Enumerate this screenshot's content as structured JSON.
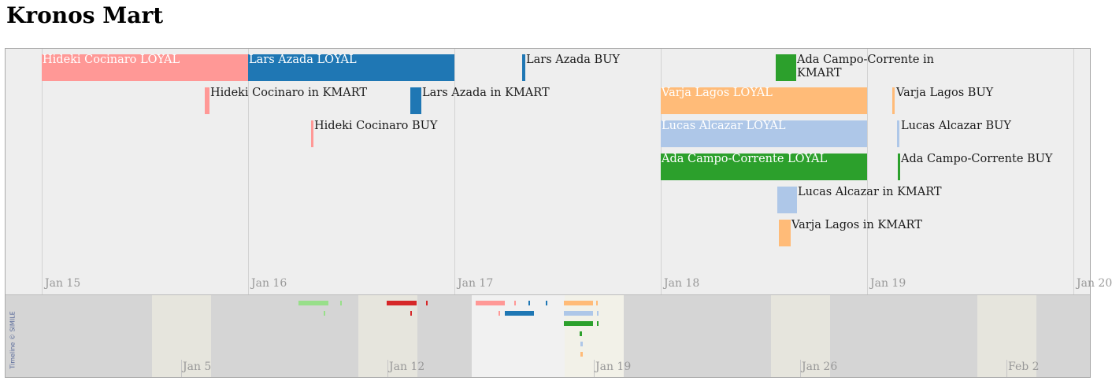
{
  "page": {
    "title": "Kronos Mart"
  },
  "timeline": {
    "upper_band": {
      "date_labels": [
        "Jan 15",
        "Jan 16",
        "Jan 17",
        "Jan 18",
        "Jan 19",
        "Jan 20"
      ],
      "events": [
        {
          "text": "Hideki Cocinaro LOYAL",
          "color": "#ff9896",
          "kind": "duration",
          "label_inside": true
        },
        {
          "text": "Lars Azada LOYAL",
          "color": "#1f77b4",
          "kind": "duration",
          "label_inside": true
        },
        {
          "text": "Lars Azada BUY",
          "color": "#1f77b4",
          "kind": "instant",
          "label_inside": false
        },
        {
          "text": "Ada Campo-Corrente in KMART",
          "color": "#2ca02c",
          "kind": "duration",
          "label_inside": false
        },
        {
          "text": "Hideki Cocinaro in KMART",
          "color": "#ff9896",
          "kind": "duration",
          "label_inside": false
        },
        {
          "text": "Lars Azada in KMART",
          "color": "#1f77b4",
          "kind": "duration",
          "label_inside": false
        },
        {
          "text": "Varja Lagos LOYAL",
          "color": "#ffbb78",
          "kind": "duration",
          "label_inside": true
        },
        {
          "text": "Varja Lagos BUY",
          "color": "#ffbb78",
          "kind": "instant",
          "label_inside": false
        },
        {
          "text": "Hideki Cocinaro BUY",
          "color": "#ff9896",
          "kind": "instant",
          "label_inside": false
        },
        {
          "text": "Lucas Alcazar LOYAL",
          "color": "#aec7e8",
          "kind": "duration",
          "label_inside": true
        },
        {
          "text": "Lucas Alcazar BUY",
          "color": "#aec7e8",
          "kind": "instant",
          "label_inside": false
        },
        {
          "text": "Ada Campo-Corrente LOYAL",
          "color": "#2ca02c",
          "kind": "duration",
          "label_inside": true
        },
        {
          "text": "Ada Campo-Corrente BUY",
          "color": "#2ca02c",
          "kind": "instant",
          "label_inside": false
        },
        {
          "text": "Lucas Alcazar in KMART",
          "color": "#aec7e8",
          "kind": "duration",
          "label_inside": false
        },
        {
          "text": "Varja Lagos in KMART",
          "color": "#ffbb78",
          "kind": "duration",
          "label_inside": false
        }
      ]
    },
    "lower_band": {
      "date_labels": [
        "Jan 5",
        "Jan 12",
        "Jan 19",
        "Jan 26",
        "Feb 2"
      ],
      "copyright": "Timeline © SIMILE",
      "mini_colors": [
        "#98df8a",
        "#d62728",
        "#ff9896",
        "#1f77b4",
        "#ffbb78",
        "#aec7e8",
        "#2ca02c"
      ]
    }
  }
}
